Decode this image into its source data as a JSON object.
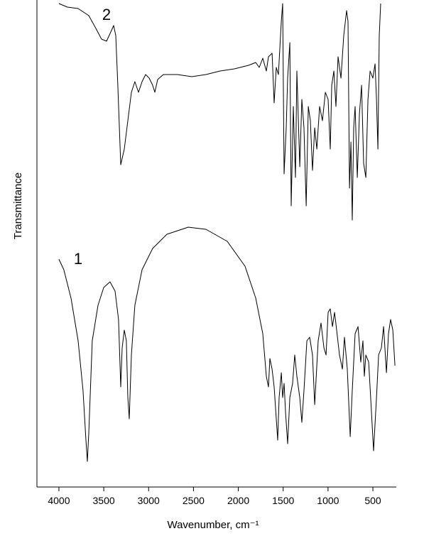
{
  "chart_data": {
    "type": "line",
    "xlabel": "Wavenumber, cm⁻¹",
    "ylabel": "Transmittance",
    "annotations": [
      "2",
      "1"
    ],
    "xlim": [
      4245,
      239
    ],
    "xticks": [
      4000,
      3500,
      3000,
      2500,
      2000,
      1500,
      1000,
      500
    ],
    "ylim": [
      0,
      686
    ],
    "series": [
      {
        "name": "2",
        "color": "#000000",
        "x": [
          4000,
          3905,
          3786,
          3667,
          3588,
          3525,
          3469,
          3422,
          3390,
          3366,
          3343,
          3311,
          3271,
          3232,
          3192,
          3153,
          3113,
          3073,
          3034,
          2994,
          2955,
          2931,
          2899,
          2836,
          2678,
          2519,
          2361,
          2203,
          2044,
          1886,
          1806,
          1767,
          1727,
          1688,
          1664,
          1624,
          1601,
          1577,
          1553,
          1521,
          1506,
          1490,
          1466,
          1450,
          1426,
          1411,
          1387,
          1363,
          1347,
          1315,
          1292,
          1268,
          1244,
          1220,
          1197,
          1173,
          1149,
          1125,
          1094,
          1062,
          1030,
          999,
          975,
          959,
          935,
          912,
          888,
          856,
          825,
          793,
          777,
          761,
          745,
          730,
          714,
          698,
          674,
          650,
          626,
          603,
          579,
          555,
          531,
          500,
          476,
          460,
          444,
          429,
          413
        ],
        "values": [
          681,
          676,
          674,
          664,
          646,
          631,
          628,
          641,
          650,
          636,
          566,
          454,
          476,
          516,
          556,
          571,
          556,
          571,
          581,
          576,
          566,
          556,
          574,
          581,
          581,
          578,
          581,
          586,
          589,
          594,
          598,
          591,
          604,
          586,
          606,
          611,
          541,
          591,
          581,
          656,
          681,
          441,
          506,
          576,
          626,
          396,
          536,
          436,
          586,
          451,
          546,
          506,
          396,
          536,
          516,
          446,
          506,
          476,
          536,
          516,
          556,
          546,
          476,
          566,
          586,
          536,
          606,
          576,
          636,
          671,
          656,
          421,
          486,
          376,
          506,
          536,
          436,
          526,
          566,
          456,
          436,
          546,
          586,
          576,
          596,
          546,
          476,
          636,
          681
        ]
      },
      {
        "name": "1",
        "color": "#000000",
        "x": [
          4000,
          3945,
          3865,
          3786,
          3731,
          3699,
          3683,
          3667,
          3628,
          3564,
          3501,
          3430,
          3374,
          3335,
          3311,
          3295,
          3271,
          3248,
          3232,
          3216,
          3192,
          3153,
          3073,
          2955,
          2796,
          2559,
          2361,
          2123,
          1925,
          1806,
          1727,
          1688,
          1664,
          1648,
          1624,
          1601,
          1577,
          1561,
          1545,
          1521,
          1506,
          1490,
          1474,
          1450,
          1426,
          1395,
          1371,
          1347,
          1315,
          1292,
          1268,
          1236,
          1205,
          1173,
          1149,
          1110,
          1078,
          1046,
          1022,
          999,
          975,
          951,
          927,
          904,
          872,
          840,
          817,
          785,
          753,
          730,
          698,
          666,
          635,
          611,
          595,
          579,
          547,
          516,
          492,
          460,
          436,
          405,
          381,
          349,
          326,
          302,
          278,
          254
        ],
        "values": [
          321,
          306,
          266,
          206,
          136,
          66,
          36,
          76,
          206,
          256,
          281,
          289,
          276,
          236,
          141,
          196,
          221,
          206,
          126,
          96,
          186,
          256,
          306,
          336,
          356,
          366,
          363,
          346,
          311,
          266,
          216,
          156,
          141,
          181,
          166,
          141,
          96,
          66,
          126,
          161,
          126,
          146,
          106,
          61,
          126,
          146,
          186,
          156,
          126,
          91,
          136,
          206,
          211,
          186,
          116,
          206,
          231,
          196,
          186,
          246,
          251,
          226,
          246,
          221,
          186,
          166,
          211,
          166,
          71,
          136,
          216,
          226,
          176,
          206,
          156,
          186,
          176,
          106,
          51,
          126,
          186,
          196,
          226,
          161,
          216,
          236,
          221,
          171
        ]
      }
    ]
  }
}
